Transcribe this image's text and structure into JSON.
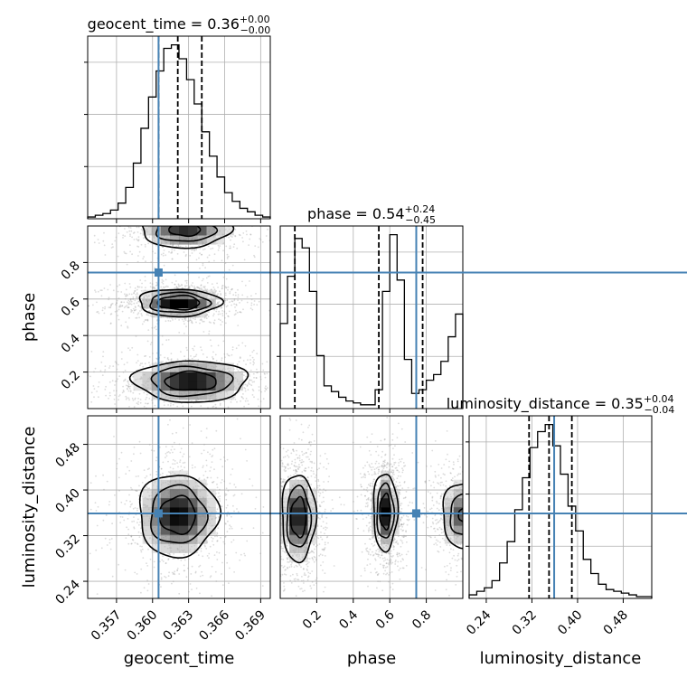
{
  "chart_data": {
    "type": "corner",
    "parameters": [
      "geocent_time",
      "phase",
      "luminosity_distance"
    ],
    "ranges": {
      "geocent_time": [
        0.3546,
        0.3698
      ],
      "phase": [
        0.0,
        1.0
      ],
      "luminosity_distance": [
        0.21,
        0.53
      ]
    },
    "ticks": {
      "geocent_time": [
        "0.357",
        "0.360",
        "0.363",
        "0.366",
        "0.369"
      ],
      "phase": [
        "0.2",
        "0.4",
        "0.6",
        "0.8"
      ],
      "luminosity_distance": [
        "0.24",
        "0.32",
        "0.40",
        "0.48"
      ]
    },
    "truth": {
      "geocent_time": 0.3605,
      "phase": 0.745,
      "luminosity_distance": 0.359
    },
    "titles": {
      "geocent_time": {
        "name": "geocent_time",
        "median": "0.36",
        "plus": "+0.00",
        "minus": "−0.00"
      },
      "phase": {
        "name": "phase",
        "median": "0.54",
        "plus": "+0.24",
        "minus": "−0.45"
      },
      "luminosity_distance": {
        "name": "luminosity_distance",
        "median": "0.35",
        "plus": "+0.04",
        "minus": "−0.04"
      }
    },
    "quantiles": {
      "geocent_time": [
        0.3605,
        0.3621,
        0.3641
      ],
      "phase": [
        0.08,
        0.54,
        0.78
      ],
      "luminosity_distance": [
        0.315,
        0.35,
        0.39
      ]
    },
    "histograms": {
      "geocent_time": [
        1,
        2,
        3,
        5,
        9,
        18,
        32,
        52,
        70,
        85,
        98,
        100,
        92,
        80,
        66,
        50,
        36,
        24,
        15,
        10,
        6,
        4,
        2,
        1
      ],
      "phase": [
        45,
        70,
        90,
        85,
        62,
        28,
        12,
        9,
        6,
        4,
        3,
        2,
        2,
        10,
        62,
        92,
        68,
        26,
        8,
        10,
        15,
        18,
        25,
        38,
        50
      ],
      "luminosity_distance": [
        2,
        4,
        6,
        10,
        20,
        32,
        50,
        68,
        85,
        94,
        98,
        86,
        70,
        52,
        38,
        22,
        14,
        8,
        5,
        4,
        3,
        2,
        1,
        1
      ]
    },
    "blobs": {
      "geocent_time|phase": [
        {
          "cx": 0.3622,
          "cy": 0.58,
          "sx": 0.0016,
          "sy": 0.035,
          "w": 1.0
        },
        {
          "cx": 0.3632,
          "cy": 0.15,
          "sx": 0.0023,
          "sy": 0.055,
          "w": 0.85,
          "rot": -0.45
        },
        {
          "cx": 0.3627,
          "cy": 0.98,
          "sx": 0.0019,
          "sy": 0.05,
          "w": 0.7
        }
      ],
      "geocent_time|luminosity_distance": [
        {
          "cx": 0.3621,
          "cy": 0.356,
          "sx": 0.0016,
          "sy": 0.035,
          "w": 1.0
        }
      ],
      "phase|luminosity_distance": [
        {
          "cx": 0.1,
          "cy": 0.352,
          "sx": 0.045,
          "sy": 0.037,
          "w": 1.0
        },
        {
          "cx": 0.575,
          "cy": 0.362,
          "sx": 0.032,
          "sy": 0.033,
          "w": 1.0
        },
        {
          "cx": 1.0,
          "cy": 0.356,
          "sx": 0.06,
          "sy": 0.03,
          "w": 0.7
        }
      ]
    },
    "contour_levels": [
      0.12,
      0.35,
      0.65
    ],
    "colors": {
      "truth": "#4682b4",
      "line": "#000000",
      "grid": "#b0b0b0"
    }
  }
}
